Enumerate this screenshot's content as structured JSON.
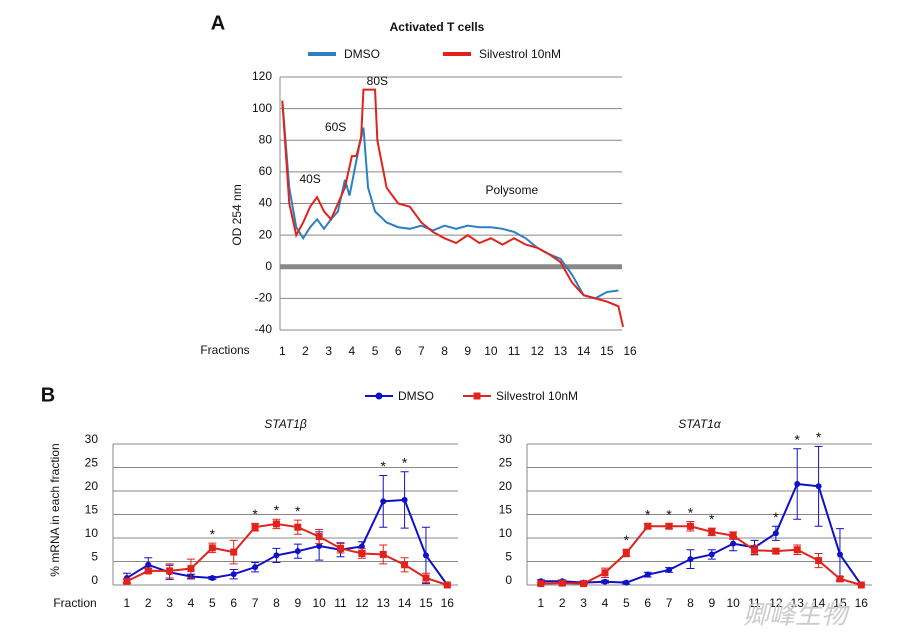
{
  "chart_data": [
    {
      "type": "line",
      "panel": "A",
      "title": "Activated T cells",
      "ylabel": "OD 254 nm",
      "xlabel": "Fractions",
      "xlim": [
        0.9,
        16
      ],
      "ylim": [
        -40,
        120
      ],
      "xticks": [
        1,
        2,
        3,
        4,
        5,
        6,
        7,
        8,
        9,
        10,
        11,
        12,
        13,
        14,
        15,
        16
      ],
      "yticks": [
        120,
        100,
        80,
        60,
        40,
        20,
        0,
        -20,
        -40
      ],
      "grid": true,
      "zero_line": true,
      "annotations": [
        {
          "text": "40S",
          "x": 2.2,
          "y": 55
        },
        {
          "text": "60S",
          "x": 3.3,
          "y": 88
        },
        {
          "text": "80S",
          "x": 5.1,
          "y": 117
        },
        {
          "text": "Polysome",
          "x": 10.9,
          "y": 48
        }
      ],
      "series": [
        {
          "name": "DMSO",
          "color": "#2d7fc2",
          "x": [
            1,
            1.3,
            1.6,
            1.9,
            2.2,
            2.5,
            2.8,
            3.1,
            3.4,
            3.7,
            3.9,
            4.1,
            4.3,
            4.5,
            4.7,
            5.0,
            5.5,
            6,
            6.5,
            7,
            7.5,
            8,
            8.5,
            9,
            9.5,
            10,
            10.5,
            11,
            11.5,
            12,
            12.5,
            13,
            13.5,
            14,
            14.5,
            15,
            15.5
          ],
          "values": [
            105,
            50,
            25,
            18,
            25,
            30,
            24,
            30,
            35,
            55,
            45,
            60,
            75,
            88,
            50,
            35,
            28,
            25,
            24,
            26,
            23,
            26,
            24,
            26,
            25,
            25,
            24,
            22,
            18,
            12,
            8,
            5,
            -5,
            -18,
            -20,
            -16,
            -15
          ]
        },
        {
          "name": "Silvestrol 10nM",
          "color": "#e0231c",
          "x": [
            1,
            1.3,
            1.6,
            1.9,
            2.2,
            2.5,
            2.8,
            3.1,
            3.4,
            3.7,
            4.0,
            4.2,
            4.4,
            4.5,
            4.6,
            5.0,
            5.1,
            5.5,
            6,
            6.5,
            7,
            7.5,
            8,
            8.5,
            9,
            9.5,
            10,
            10.5,
            11,
            11.5,
            12,
            12.5,
            13,
            13.5,
            14,
            14.5,
            15,
            15.5,
            15.7
          ],
          "values": [
            105,
            40,
            20,
            28,
            38,
            44,
            35,
            30,
            40,
            50,
            70,
            70,
            82,
            112,
            112,
            112,
            80,
            50,
            40,
            38,
            28,
            22,
            18,
            15,
            20,
            15,
            18,
            14,
            18,
            14,
            12,
            8,
            3,
            -10,
            -18,
            -20,
            -22,
            -25,
            -38
          ]
        }
      ]
    },
    {
      "type": "errorbar-line",
      "panel": "B",
      "ylabel": "% mRNA in each fraction",
      "xlabel": "Fraction",
      "xlim": [
        0.35,
        16.5
      ],
      "ylim": [
        0,
        30
      ],
      "xticks": [
        1,
        2,
        3,
        4,
        5,
        6,
        7,
        8,
        9,
        10,
        11,
        12,
        13,
        14,
        15,
        16
      ],
      "yticks": [
        0,
        5,
        10,
        15,
        20,
        25,
        30
      ],
      "grid": true,
      "legend": [
        {
          "name": "DMSO",
          "color": "#1010c8",
          "marker": "circle"
        },
        {
          "name": "Silvestrol 10nM",
          "color": "#e0231c",
          "marker": "square"
        }
      ],
      "subplots": [
        {
          "title": "STAT1β",
          "series": [
            {
              "values": [
                1.5,
                4.3,
                2.7,
                1.8,
                1.5,
                2.3,
                3.8,
                6.3,
                7.2,
                8.3,
                7.5,
                8.2,
                17.8,
                18.1,
                6.3,
                0
              ],
              "errors": [
                1,
                1.5,
                1.5,
                0.5,
                0.3,
                1,
                1,
                1.5,
                1.5,
                3,
                1.5,
                1,
                5.5,
                6,
                6,
                0
              ]
            },
            {
              "values": [
                0.8,
                3,
                3,
                3.5,
                7.9,
                7,
                12.3,
                13,
                12.3,
                10.3,
                7.8,
                6.7,
                6.5,
                4.3,
                1.5,
                0
              ],
              "errors": [
                0.5,
                0.5,
                1.5,
                2,
                1,
                2.5,
                0.8,
                1,
                1.5,
                1.5,
                1,
                1,
                2,
                1.5,
                1,
                0
              ]
            }
          ],
          "annotations": [
            {
              "text": "*",
              "x": 5
            },
            {
              "text": "*",
              "x": 7
            },
            {
              "text": "*",
              "x": 8
            },
            {
              "text": "*",
              "x": 9
            },
            {
              "text": "*",
              "x": 13
            },
            {
              "text": "*",
              "x": 14
            }
          ]
        },
        {
          "title": "STAT1α",
          "series": [
            {
              "values": [
                0.8,
                0.8,
                0.5,
                0.7,
                0.5,
                2.2,
                3.2,
                5.5,
                6.5,
                8.8,
                8,
                11,
                21.5,
                21,
                6.5,
                0
              ],
              "errors": [
                0.3,
                0.3,
                0.3,
                0.3,
                0.3,
                0.5,
                0.5,
                2,
                1,
                1.5,
                1.5,
                1.5,
                7.5,
                8.5,
                5.5,
                0
              ]
            },
            {
              "values": [
                0.3,
                0.4,
                0.3,
                2.6,
                6.8,
                12.5,
                12.5,
                12.5,
                11.3,
                10.5,
                7.4,
                7.2,
                7.5,
                5.2,
                1.3,
                0
              ],
              "errors": [
                0.2,
                0.2,
                0.2,
                1,
                0.8,
                0.5,
                0.5,
                1,
                0.8,
                0.8,
                1,
                0.5,
                1,
                1.5,
                0.5,
                0
              ]
            }
          ],
          "annotations": [
            {
              "text": "*",
              "x": 5
            },
            {
              "text": "*",
              "x": 6
            },
            {
              "text": "*",
              "x": 7
            },
            {
              "text": "*",
              "x": 8
            },
            {
              "text": "*",
              "x": 9
            },
            {
              "text": "*",
              "x": 12
            },
            {
              "text": "*",
              "x": 13
            },
            {
              "text": "*",
              "x": 14
            }
          ]
        }
      ]
    }
  ],
  "watermark": "卿峰生物"
}
